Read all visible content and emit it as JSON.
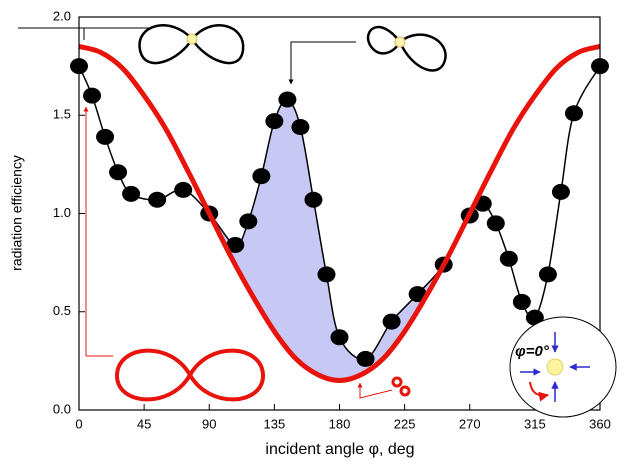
{
  "chart_data": {
    "type": "line",
    "x_label": "incident angle φ, deg",
    "y_label": "radiation efficiency",
    "annotation": "φ=0°",
    "xlim": [
      0,
      360
    ],
    "ylim": [
      0,
      2
    ],
    "xticks": [
      0,
      45,
      90,
      135,
      180,
      225,
      270,
      315,
      360
    ],
    "yticks": [
      {
        "value": 0,
        "label": "0.0"
      },
      0.5,
      {
        "value": 1,
        "label": "1.0"
      },
      1.5,
      {
        "value": 2,
        "label": "2.0"
      }
    ],
    "fill_color": "#c8c8f5",
    "series": [
      {
        "color": "#000000",
        "markers": true,
        "x": [
          0,
          9,
          18,
          27,
          36,
          54,
          72,
          90,
          108,
          117,
          126,
          135,
          144,
          153,
          162,
          171,
          180,
          198,
          216,
          234,
          252,
          270,
          279,
          288,
          297,
          306,
          315,
          324,
          333,
          342,
          360
        ],
        "values": [
          1.75,
          1.6,
          1.39,
          1.21,
          1.1,
          1.07,
          1.12,
          1.0,
          0.84,
          0.96,
          1.19,
          1.47,
          1.58,
          1.44,
          1.07,
          0.69,
          0.37,
          0.26,
          0.45,
          0.59,
          0.74,
          0.99,
          1.05,
          0.95,
          0.77,
          0.55,
          0.47,
          0.69,
          1.11,
          1.51,
          1.75
        ]
      },
      {
        "color": "#e8140c",
        "markers": false,
        "x": [
          0,
          15,
          30,
          45,
          60,
          75,
          90,
          105,
          120,
          135,
          150,
          165,
          180,
          195,
          210,
          225,
          240,
          255,
          270,
          285,
          300,
          315,
          330,
          345,
          360
        ],
        "values": [
          1.85,
          1.82,
          1.74,
          1.6,
          1.43,
          1.22,
          1.0,
          0.78,
          0.58,
          0.4,
          0.26,
          0.18,
          0.15,
          0.18,
          0.26,
          0.4,
          0.58,
          0.78,
          1.0,
          1.22,
          1.43,
          1.6,
          1.74,
          1.82,
          1.85
        ]
      }
    ]
  }
}
